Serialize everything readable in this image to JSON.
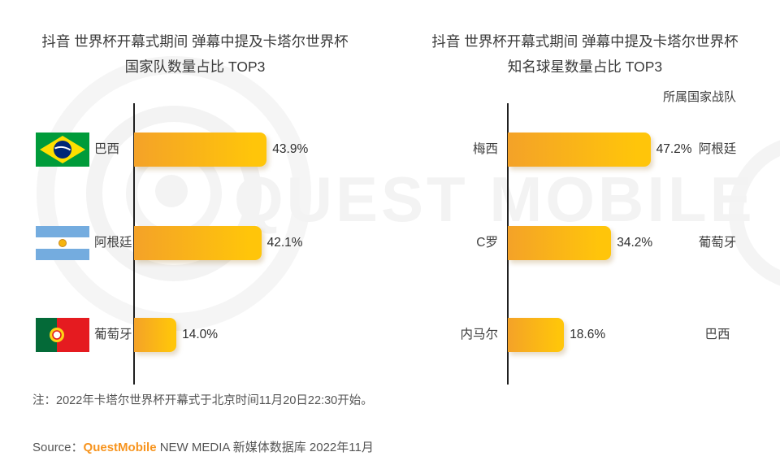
{
  "watermark": "QUEST MOBILE",
  "chart_data": [
    {
      "type": "bar",
      "orientation": "horizontal",
      "title": "抖音 世界杯开幕式期间 弹幕中提及卡塔尔世界杯国家队数量占比 TOP3",
      "categories": [
        "巴西",
        "阿根廷",
        "葡萄牙"
      ],
      "values": [
        43.9,
        42.1,
        14.0
      ],
      "value_labels": [
        "43.9%",
        "42.1%",
        "14.0%"
      ],
      "flags": [
        "brazil",
        "argentina",
        "portugal"
      ],
      "unit": "%",
      "xlim": [
        0,
        50
      ],
      "grid": false,
      "legend": "none"
    },
    {
      "type": "bar",
      "orientation": "horizontal",
      "title": "抖音 世界杯开幕式期间 弹幕中提及卡塔尔世界杯 知名球星数量占比 TOP3",
      "column_header": "所属国家战队",
      "categories": [
        "梅西",
        "C罗",
        "内马尔"
      ],
      "values": [
        47.2,
        34.2,
        18.6
      ],
      "value_labels": [
        "47.2%",
        "34.2%",
        "18.6%"
      ],
      "countries": [
        "阿根廷",
        "葡萄牙",
        "巴西"
      ],
      "unit": "%",
      "xlim": [
        0,
        50
      ],
      "grid": false,
      "legend": "none"
    }
  ],
  "note": "注：2022年卡塔尔世界杯开幕式于北京时间11月20日22:30开始。",
  "source": {
    "prefix": "Source：",
    "brand": "QuestMobile",
    "suffix": " NEW MEDIA 新媒体数据库 2022年11月"
  },
  "colors": {
    "bar_gradient_start": "#F4A228",
    "bar_gradient_end": "#FFC50A",
    "brand_orange": "#F7941E",
    "axis": "#1F1F1F",
    "watermark": "#F3F3F3",
    "brazil_green": "#009B3A",
    "brazil_yellow": "#FEDF00",
    "brazil_blue": "#002776",
    "argentina_blue": "#74ACDF",
    "argentina_sun": "#F6B40E",
    "portugal_green": "#046A38",
    "portugal_red": "#E51B20",
    "portugal_gold": "#FDD216"
  }
}
